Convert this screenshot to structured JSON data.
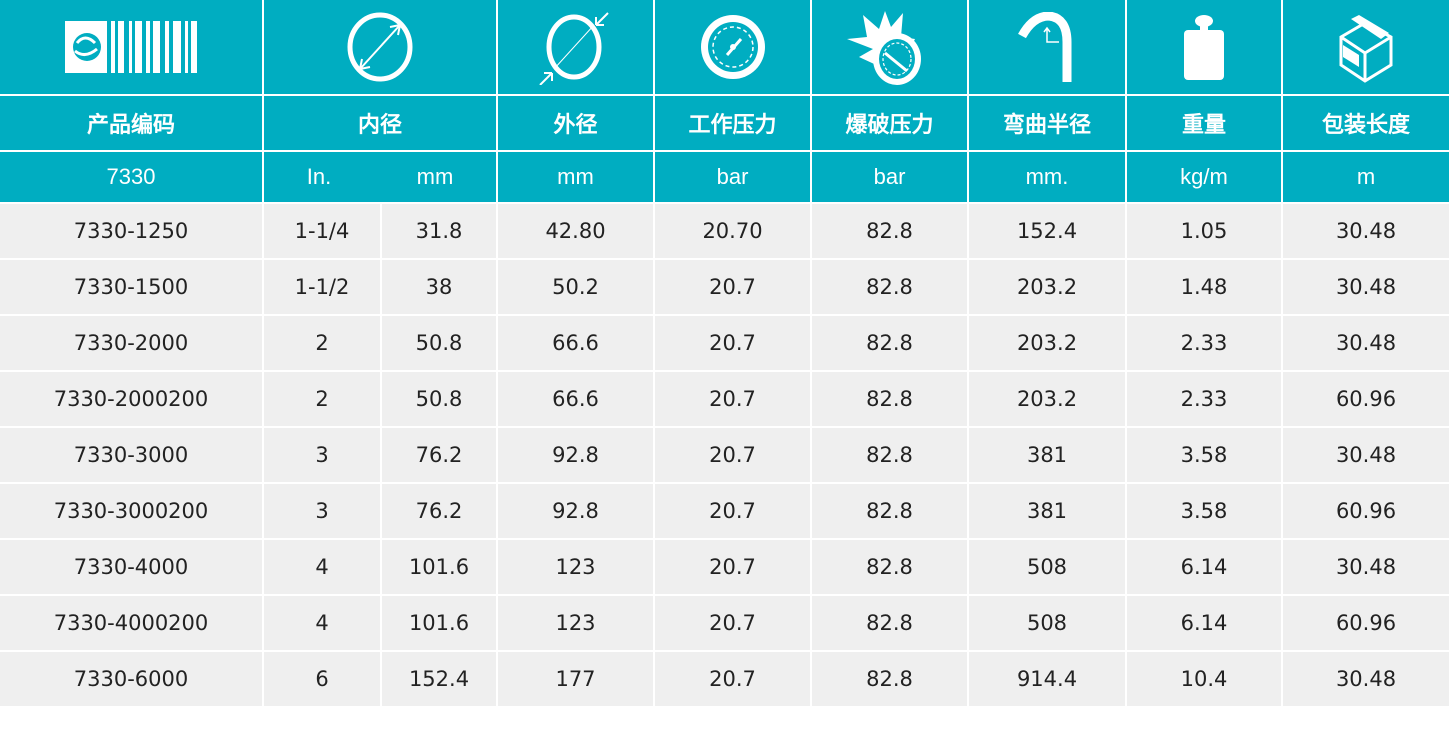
{
  "colors": {
    "header": "#00adc1",
    "row": "#efefef",
    "text": "#222222"
  },
  "icons": [
    "barcode-logo-icon",
    "inner-diameter-icon",
    "outer-diameter-icon",
    "pressure-gauge-icon",
    "burst-pressure-icon",
    "bend-radius-icon",
    "weight-icon",
    "package-box-icon"
  ],
  "headers": [
    "产品编码",
    "内径",
    "外径",
    "工作压力",
    "爆破压力",
    "弯曲半径",
    "重量",
    "包装长度"
  ],
  "units": {
    "code": "7330",
    "id_in": "In.",
    "id_mm": "mm",
    "od": "mm",
    "wp": "bar",
    "bp": "bar",
    "br": "mm.",
    "wt": "kg/m",
    "len": "m"
  },
  "rows": [
    [
      "7330-1250",
      "1-1/4",
      "31.8",
      "42.80",
      "20.70",
      "82.8",
      "152.4",
      "1.05",
      "30.48"
    ],
    [
      "7330-1500",
      "1-1/2",
      "38",
      "50.2",
      "20.7",
      "82.8",
      "203.2",
      "1.48",
      "30.48"
    ],
    [
      "7330-2000",
      "2",
      "50.8",
      "66.6",
      "20.7",
      "82.8",
      "203.2",
      "2.33",
      "30.48"
    ],
    [
      "7330-2000200",
      "2",
      "50.8",
      "66.6",
      "20.7",
      "82.8",
      "203.2",
      "2.33",
      "60.96"
    ],
    [
      "7330-3000",
      "3",
      "76.2",
      "92.8",
      "20.7",
      "82.8",
      "381",
      "3.58",
      "30.48"
    ],
    [
      "7330-3000200",
      "3",
      "76.2",
      "92.8",
      "20.7",
      "82.8",
      "381",
      "3.58",
      "60.96"
    ],
    [
      "7330-4000",
      "4",
      "101.6",
      "123",
      "20.7",
      "82.8",
      "508",
      "6.14",
      "30.48"
    ],
    [
      "7330-4000200",
      "4",
      "101.6",
      "123",
      "20.7",
      "82.8",
      "508",
      "6.14",
      "60.96"
    ],
    [
      "7330-6000",
      "6",
      "152.4",
      "177",
      "20.7",
      "82.8",
      "914.4",
      "10.4",
      "30.48"
    ]
  ]
}
